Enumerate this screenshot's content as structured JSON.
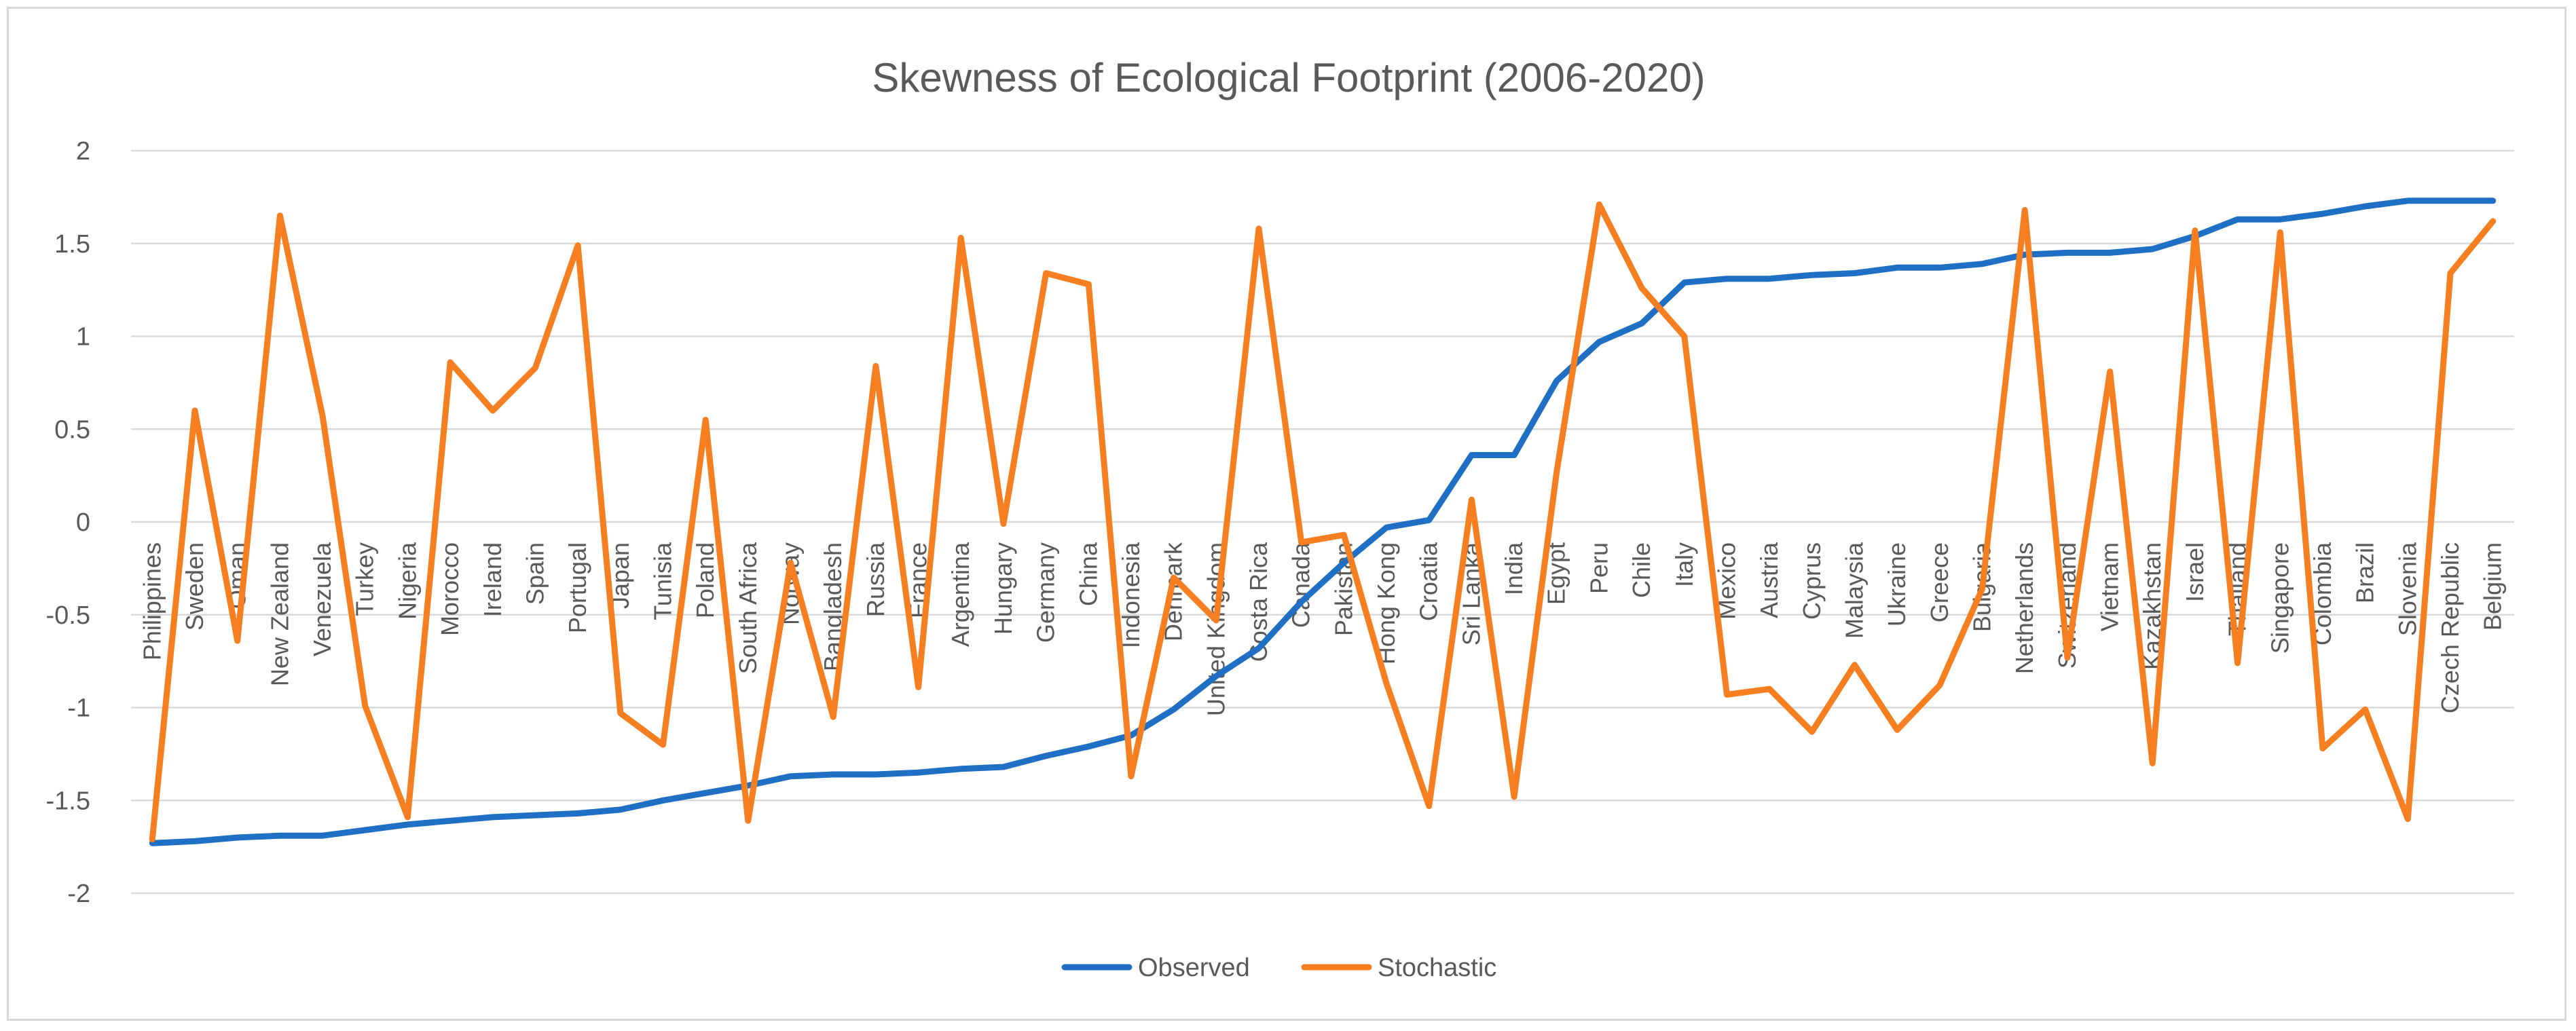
{
  "chart_data": {
    "type": "line",
    "title": "Skewness of Ecological Footprint (2006-2020)",
    "xlabel": "",
    "ylabel": "",
    "ylim": [
      -2,
      2
    ],
    "yticks": [
      2,
      1.5,
      1,
      0.5,
      0,
      -0.5,
      -1,
      -1.5,
      -2
    ],
    "ytick_labels": [
      "2",
      "1.5",
      "1",
      "0.5",
      "0",
      "-0.5",
      "-1",
      "-1.5",
      "-2"
    ],
    "grid": true,
    "legend_position": "bottom-center",
    "categories": [
      "Philippines",
      "Sweden",
      "Oman",
      "New Zealand",
      "Venezuela",
      "Turkey",
      "Nigeria",
      "Morocco",
      "Ireland",
      "Spain",
      "Portugal",
      "Japan",
      "Tunisia",
      "Poland",
      "South Africa",
      "Norway",
      "Bangladesh",
      "Russia",
      "France",
      "Argentina",
      "Hungary",
      "Germany",
      "China",
      "Indonesia",
      "Denmark",
      "United Kingdom",
      "Costa Rica",
      "Canada",
      "Pakistan",
      "Hong Kong",
      "Croatia",
      "Sri Lanka",
      "India",
      "Egypt",
      "Peru",
      "Chile",
      "Italy",
      "Mexico",
      "Austria",
      "Cyprus",
      "Malaysia",
      "Ukraine",
      "Greece",
      "Bulgaria",
      "Netherlands",
      "Switzerland",
      "Vietnam",
      "Kazakhstan",
      "Israel",
      "Thailand",
      "Singapore",
      "Colombia",
      "Brazil",
      "Slovenia",
      "Czech Republic",
      "Belgium"
    ],
    "series": [
      {
        "name": "Observed",
        "color": "#1f6fc5",
        "values": [
          -1.73,
          -1.72,
          -1.7,
          -1.69,
          -1.69,
          -1.66,
          -1.63,
          -1.61,
          -1.59,
          -1.58,
          -1.57,
          -1.55,
          -1.5,
          -1.46,
          -1.42,
          -1.37,
          -1.36,
          -1.36,
          -1.35,
          -1.33,
          -1.32,
          -1.26,
          -1.21,
          -1.15,
          -1.01,
          -0.83,
          -0.68,
          -0.43,
          -0.22,
          -0.03,
          0.01,
          0.36,
          0.36,
          0.76,
          0.97,
          1.07,
          1.29,
          1.31,
          1.31,
          1.33,
          1.34,
          1.37,
          1.37,
          1.39,
          1.44,
          1.45,
          1.45,
          1.47,
          1.54,
          1.63,
          1.63,
          1.66,
          1.7,
          1.73,
          1.73,
          1.73
        ]
      },
      {
        "name": "Stochastic",
        "color": "#f57f20",
        "values": [
          -1.71,
          0.6,
          -0.64,
          1.65,
          0.57,
          -0.99,
          -1.59,
          0.86,
          0.6,
          0.83,
          1.49,
          -1.03,
          -1.2,
          0.55,
          -1.61,
          -0.22,
          -1.05,
          0.84,
          -0.89,
          1.53,
          -0.01,
          1.34,
          1.28,
          -1.37,
          -0.3,
          -0.53,
          1.58,
          -0.11,
          -0.07,
          -0.87,
          -1.53,
          0.12,
          -1.48,
          0.27,
          1.71,
          1.26,
          1.0,
          -0.93,
          -0.9,
          -1.13,
          -0.77,
          -1.12,
          -0.88,
          -0.36,
          1.68,
          -0.73,
          0.81,
          -1.3,
          1.57,
          -0.76,
          1.56,
          -1.22,
          -1.01,
          -1.6,
          1.34,
          1.62
        ]
      }
    ]
  }
}
